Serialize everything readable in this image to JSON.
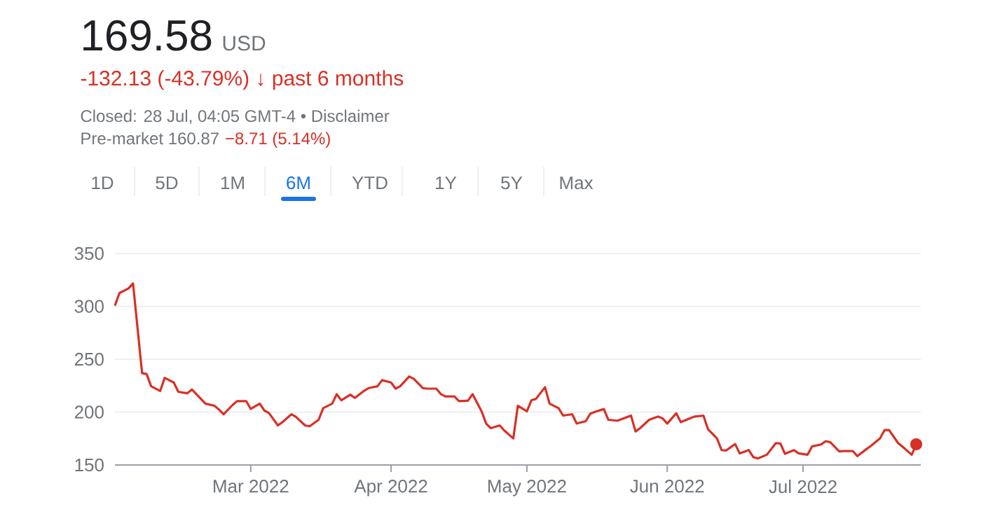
{
  "chart_data": {
    "type": "line",
    "annotations": [
      "169.58",
      "USD",
      "-132.13 (-43.79%) ↓ past 6 months",
      "Closed: 28 Jul, 04:05 GMT-4 • Disclaimer",
      "Pre-market 160.87",
      "−8.71 (5.14%)",
      "1D",
      "5D",
      "1M",
      "6M",
      "YTD",
      "1Y",
      "5Y",
      "Max"
    ],
    "series": [
      {
        "color": "#d93025",
        "marker": "none",
        "x": [
          "2022-01-30",
          "2022-01-31",
          "2022-02-02",
          "2022-02-03",
          "2022-02-05",
          "2022-02-06",
          "2022-02-07",
          "2022-02-09",
          "2022-02-10",
          "2022-02-12",
          "2022-02-13",
          "2022-02-15",
          "2022-02-16",
          "2022-02-17",
          "2022-02-19",
          "2022-02-21",
          "2022-02-22",
          "2022-02-23",
          "2022-02-25",
          "2022-02-26",
          "2022-02-28",
          "2022-03-01",
          "2022-03-03",
          "2022-03-04",
          "2022-03-05",
          "2022-03-07",
          "2022-03-08",
          "2022-03-10",
          "2022-03-11",
          "2022-03-13",
          "2022-03-14",
          "2022-03-16",
          "2022-03-17",
          "2022-03-19",
          "2022-03-20",
          "2022-03-21",
          "2022-03-23",
          "2022-03-24",
          "2022-03-26",
          "2022-03-27",
          "2022-03-29",
          "2022-03-30",
          "2022-04-01",
          "2022-04-02",
          "2022-04-03",
          "2022-04-05",
          "2022-04-06",
          "2022-04-08",
          "2022-04-09",
          "2022-04-11",
          "2022-04-12",
          "2022-04-13",
          "2022-04-15",
          "2022-04-16",
          "2022-04-18",
          "2022-04-19",
          "2022-04-21",
          "2022-04-22",
          "2022-04-23",
          "2022-04-25",
          "2022-04-26",
          "2022-04-28",
          "2022-04-29",
          "2022-05-01",
          "2022-05-02",
          "2022-05-03",
          "2022-05-05",
          "2022-05-06",
          "2022-05-08",
          "2022-05-09",
          "2022-05-11",
          "2022-05-12",
          "2022-05-14",
          "2022-05-15",
          "2022-05-16",
          "2022-05-18",
          "2022-05-19",
          "2022-05-21",
          "2022-05-24",
          "2022-05-25",
          "2022-05-26",
          "2022-05-28",
          "2022-05-30",
          "2022-05-31",
          "2022-06-01",
          "2022-06-03",
          "2022-06-04",
          "2022-06-06",
          "2022-06-07",
          "2022-06-09",
          "2022-06-10",
          "2022-06-12",
          "2022-06-13",
          "2022-06-14",
          "2022-06-16",
          "2022-06-17",
          "2022-06-19",
          "2022-06-20",
          "2022-06-21",
          "2022-06-23",
          "2022-06-25",
          "2022-06-26",
          "2022-06-27",
          "2022-06-29",
          "2022-06-30",
          "2022-07-02",
          "2022-07-03",
          "2022-07-05",
          "2022-07-06",
          "2022-07-07",
          "2022-07-09",
          "2022-07-10",
          "2022-07-12",
          "2022-07-13",
          "2022-07-15",
          "2022-07-16",
          "2022-07-18",
          "2022-07-19",
          "2022-07-20",
          "2022-07-22",
          "2022-07-23",
          "2022-07-25",
          "2022-07-26"
        ],
        "values": [
          300.7,
          312.6,
          317,
          321.8,
          236.8,
          236,
          224.4,
          220,
          232.4,
          228,
          219.2,
          217.8,
          221.4,
          217,
          208,
          206,
          202.4,
          198,
          206.8,
          210.4,
          210.4,
          203,
          208,
          201.5,
          199.3,
          187.4,
          190.5,
          198,
          195.4,
          187.4,
          186.6,
          192.7,
          203.7,
          208,
          217,
          211.2,
          216.5,
          213.4,
          220,
          222.7,
          224.4,
          230.2,
          228,
          222.2,
          224.4,
          233.7,
          231.5,
          222.7,
          222.2,
          222.2,
          217,
          214.8,
          214.8,
          210.4,
          210.8,
          217,
          200.7,
          189.2,
          184.8,
          187.4,
          182.6,
          175.1,
          206,
          200.7,
          211.2,
          212.5,
          223.6,
          208,
          203.7,
          196.7,
          198,
          189.2,
          191.4,
          198.5,
          200.2,
          202.9,
          192.7,
          191.9,
          196.7,
          181.7,
          184.8,
          192.7,
          195.8,
          194,
          189.2,
          198.9,
          190.5,
          194,
          195.8,
          196.7,
          183.9,
          175.1,
          164.1,
          163.7,
          169.8,
          161,
          164.1,
          157.5,
          156.2,
          159.7,
          170.7,
          170.3,
          160.6,
          164.1,
          161,
          159.7,
          167.6,
          169.4,
          172.5,
          171.6,
          162.8,
          163.2,
          163.2,
          158.4,
          165,
          168.1,
          175.1,
          183,
          183,
          170.7,
          167.2,
          159.7,
          169.58
        ]
      },
      {
        "type": "scatter",
        "color": "#d93025",
        "marker": "circle",
        "x": [
          "2022-07-26"
        ],
        "values": [
          169.58
        ]
      }
    ],
    "xlim": [
      "2022-01-30",
      "2022-07-27"
    ],
    "xticks": [
      {
        "value": "2022-03-01",
        "label": "Mar 2022"
      },
      {
        "value": "2022-04-01",
        "label": "Apr 2022"
      },
      {
        "value": "2022-05-01",
        "label": "May 2022"
      },
      {
        "value": "2022-06-01",
        "label": "Jun 2022"
      },
      {
        "value": "2022-07-01",
        "label": "Jul 2022"
      }
    ],
    "ylim": [
      150,
      350
    ],
    "yticks": [
      150,
      200,
      250,
      300,
      350
    ],
    "grid": "y"
  }
}
